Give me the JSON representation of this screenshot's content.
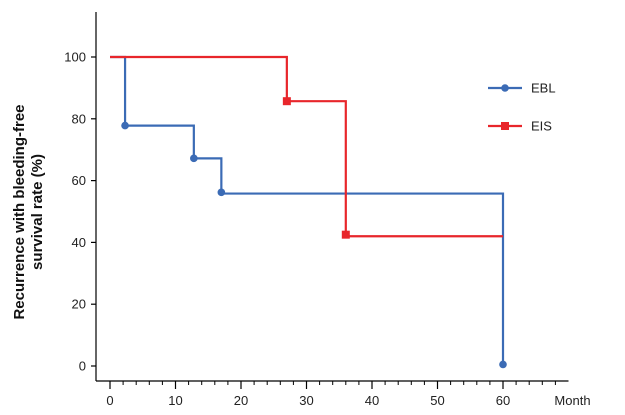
{
  "chart_data": {
    "type": "line",
    "step": true,
    "xlabel": "Month",
    "ylabel_lines": [
      "Recurrence with bleeding-free",
      "survival rate (%)"
    ],
    "xlim": [
      0,
      70
    ],
    "ylim": [
      0,
      110
    ],
    "x_ticks": [
      0,
      10,
      20,
      30,
      40,
      50,
      60
    ],
    "x_minor_step": 2,
    "y_ticks": [
      0,
      20,
      40,
      60,
      80,
      100
    ],
    "legend_position": "top-right",
    "grid": false,
    "series": [
      {
        "name": "EBL",
        "color": "#3b6bb5",
        "marker": "circle",
        "steps": [
          {
            "x": 0,
            "y": 100
          },
          {
            "x": 2.3,
            "y": 77.8
          },
          {
            "x": 12.8,
            "y": 67.2
          },
          {
            "x": 17,
            "y": 55.8
          },
          {
            "x": 60,
            "y": 0.5
          }
        ],
        "markers": [
          {
            "x": 2.3,
            "y": 77.8
          },
          {
            "x": 12.8,
            "y": 67.2
          },
          {
            "x": 17,
            "y": 56.2
          },
          {
            "x": 60,
            "y": 0.5
          }
        ]
      },
      {
        "name": "EIS",
        "color": "#e8262b",
        "marker": "square",
        "steps": [
          {
            "x": 0,
            "y": 100
          },
          {
            "x": 27,
            "y": 85.7
          },
          {
            "x": 36,
            "y": 42
          },
          {
            "x": 60,
            "y": 42
          }
        ],
        "markers": [
          {
            "x": 27,
            "y": 85.7
          },
          {
            "x": 36,
            "y": 42.5
          }
        ]
      }
    ]
  }
}
